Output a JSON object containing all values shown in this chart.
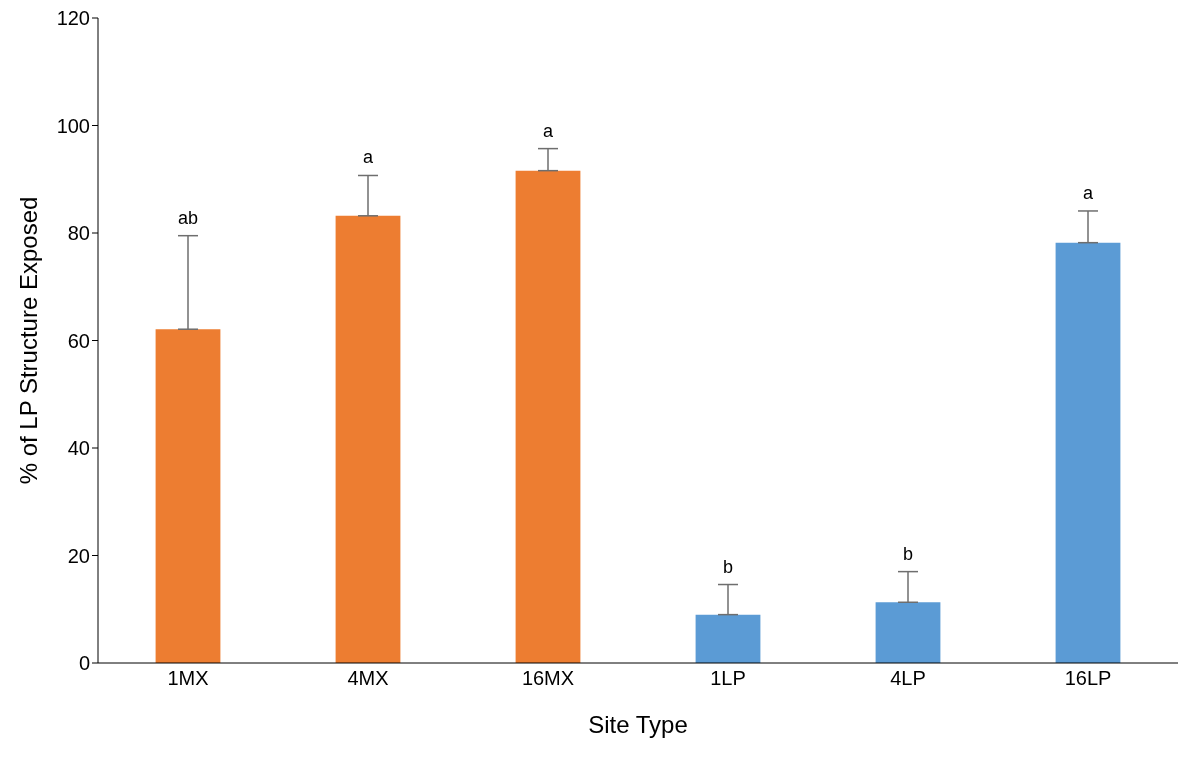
{
  "chart_data": {
    "type": "bar",
    "xlabel": "Site Type",
    "ylabel": "% of LP Structure Exposed",
    "categories": [
      "1MX",
      "4MX",
      "16MX",
      "1LP",
      "4LP",
      "16LP"
    ],
    "values": [
      62.1,
      83.2,
      91.6,
      9.0,
      11.3,
      78.2
    ],
    "colors": [
      "#ed7d31",
      "#ed7d31",
      "#ed7d31",
      "#5b9bd5",
      "#5b9bd5",
      "#5b9bd5"
    ],
    "errors": [
      [
        62.1,
        79.5
      ],
      [
        83.2,
        90.7
      ],
      [
        91.6,
        95.7
      ],
      [
        9.0,
        14.6
      ],
      [
        11.3,
        17.0
      ],
      [
        78.2,
        84.1
      ]
    ],
    "ylim": [
      0,
      120
    ],
    "yticks": [
      0,
      20,
      40,
      60,
      80,
      100,
      120
    ],
    "grid": false,
    "legend": false,
    "annotations": [
      {
        "text": "ab",
        "x": "1MX",
        "y": 79.5
      },
      {
        "text": "a",
        "x": "4MX",
        "y": 90.7
      },
      {
        "text": "a",
        "x": "16MX",
        "y": 95.7
      },
      {
        "text": "b",
        "x": "1LP",
        "y": 14.6
      },
      {
        "text": "b",
        "x": "4LP",
        "y": 17.0
      },
      {
        "text": "a",
        "x": "16LP",
        "y": 84.1
      }
    ]
  }
}
